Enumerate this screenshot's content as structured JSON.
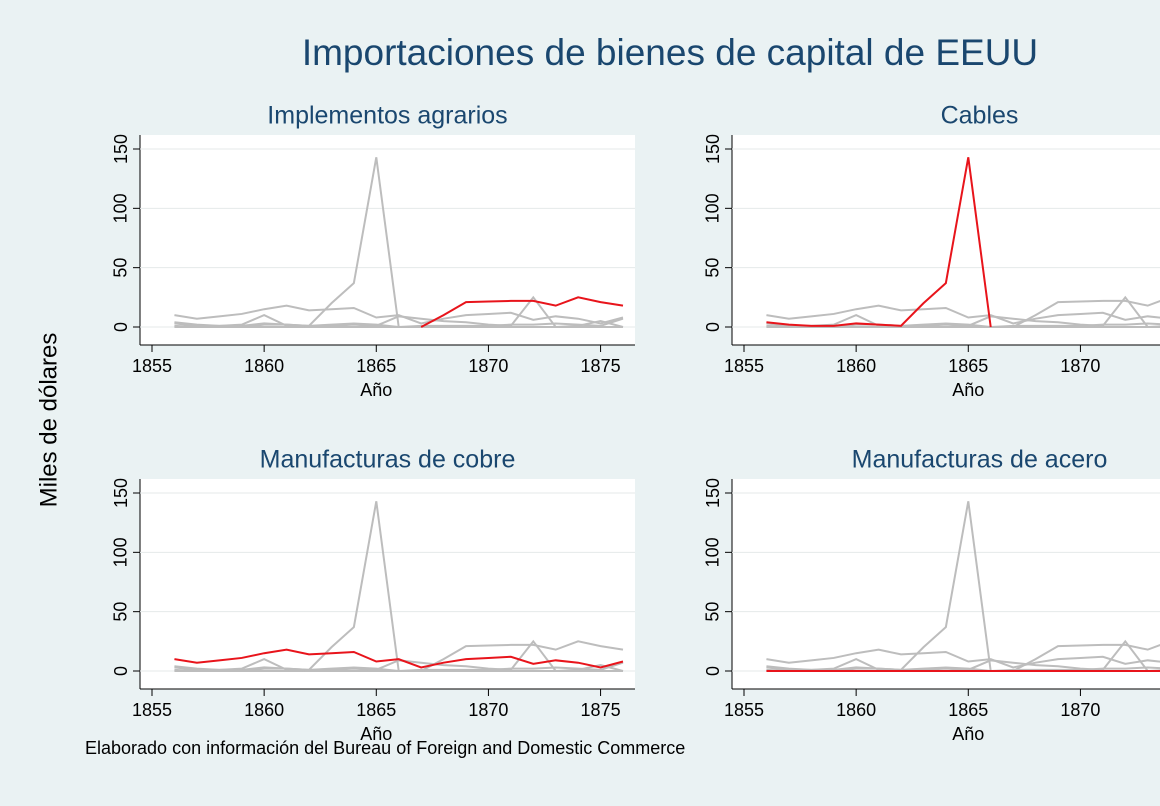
{
  "chart_data": {
    "type": "line",
    "title": "Importaciones de bienes de capital de EEUU",
    "ylabel": "Miles de dólares",
    "xlabel": "Año",
    "note": "Elaborado con información del Bureau of Foreign and Domestic Commerce",
    "highlight_color": "#e8141b",
    "color": "#bdbdbd",
    "grid": true,
    "xlim": [
      1855,
      1876
    ],
    "ylim": [
      0,
      150
    ],
    "xticks": [
      1855,
      1860,
      1865,
      1870,
      1875
    ],
    "yticks": [
      0,
      50,
      100,
      150
    ],
    "x": [
      1856,
      1857,
      1858,
      1859,
      1860,
      1861,
      1862,
      1863,
      1864,
      1865,
      1866,
      1867,
      1868,
      1869,
      1870,
      1871,
      1872,
      1873,
      1874,
      1875,
      1876
    ],
    "series": [
      {
        "name": "Implementos agrarios",
        "values": [
          null,
          null,
          null,
          null,
          null,
          null,
          null,
          null,
          null,
          null,
          null,
          0,
          10,
          21,
          21.5,
          22,
          22,
          18,
          25,
          21,
          18
        ]
      },
      {
        "name": "Cables",
        "values": [
          4,
          2,
          1,
          1,
          3,
          2,
          1,
          20,
          37,
          143,
          0,
          null,
          null,
          null,
          null,
          null,
          null,
          null,
          null,
          null,
          null
        ]
      },
      {
        "name": "Manufacturas de cobre",
        "values": [
          10,
          7,
          9,
          11,
          15,
          18,
          14,
          15,
          16,
          8,
          10,
          3,
          7,
          10,
          11,
          12,
          6,
          9,
          7,
          3,
          8
        ]
      },
      {
        "name": "Manufacturas de acero",
        "values": [
          0,
          0,
          0,
          0,
          0,
          0,
          0,
          0,
          0,
          0,
          0,
          0,
          0,
          0,
          0,
          0,
          0,
          0,
          0,
          0,
          0
        ]
      },
      {
        "values": [
          3,
          1,
          1,
          2,
          10,
          1,
          0,
          1,
          2,
          1,
          9,
          7,
          5,
          4,
          2,
          1,
          25,
          0,
          1,
          5,
          0
        ]
      },
      {
        "values": [
          1,
          0,
          0,
          0,
          2,
          2,
          1,
          2,
          3,
          2,
          0,
          1,
          1,
          1,
          1,
          2,
          2,
          3,
          2,
          1,
          7
        ]
      }
    ]
  }
}
